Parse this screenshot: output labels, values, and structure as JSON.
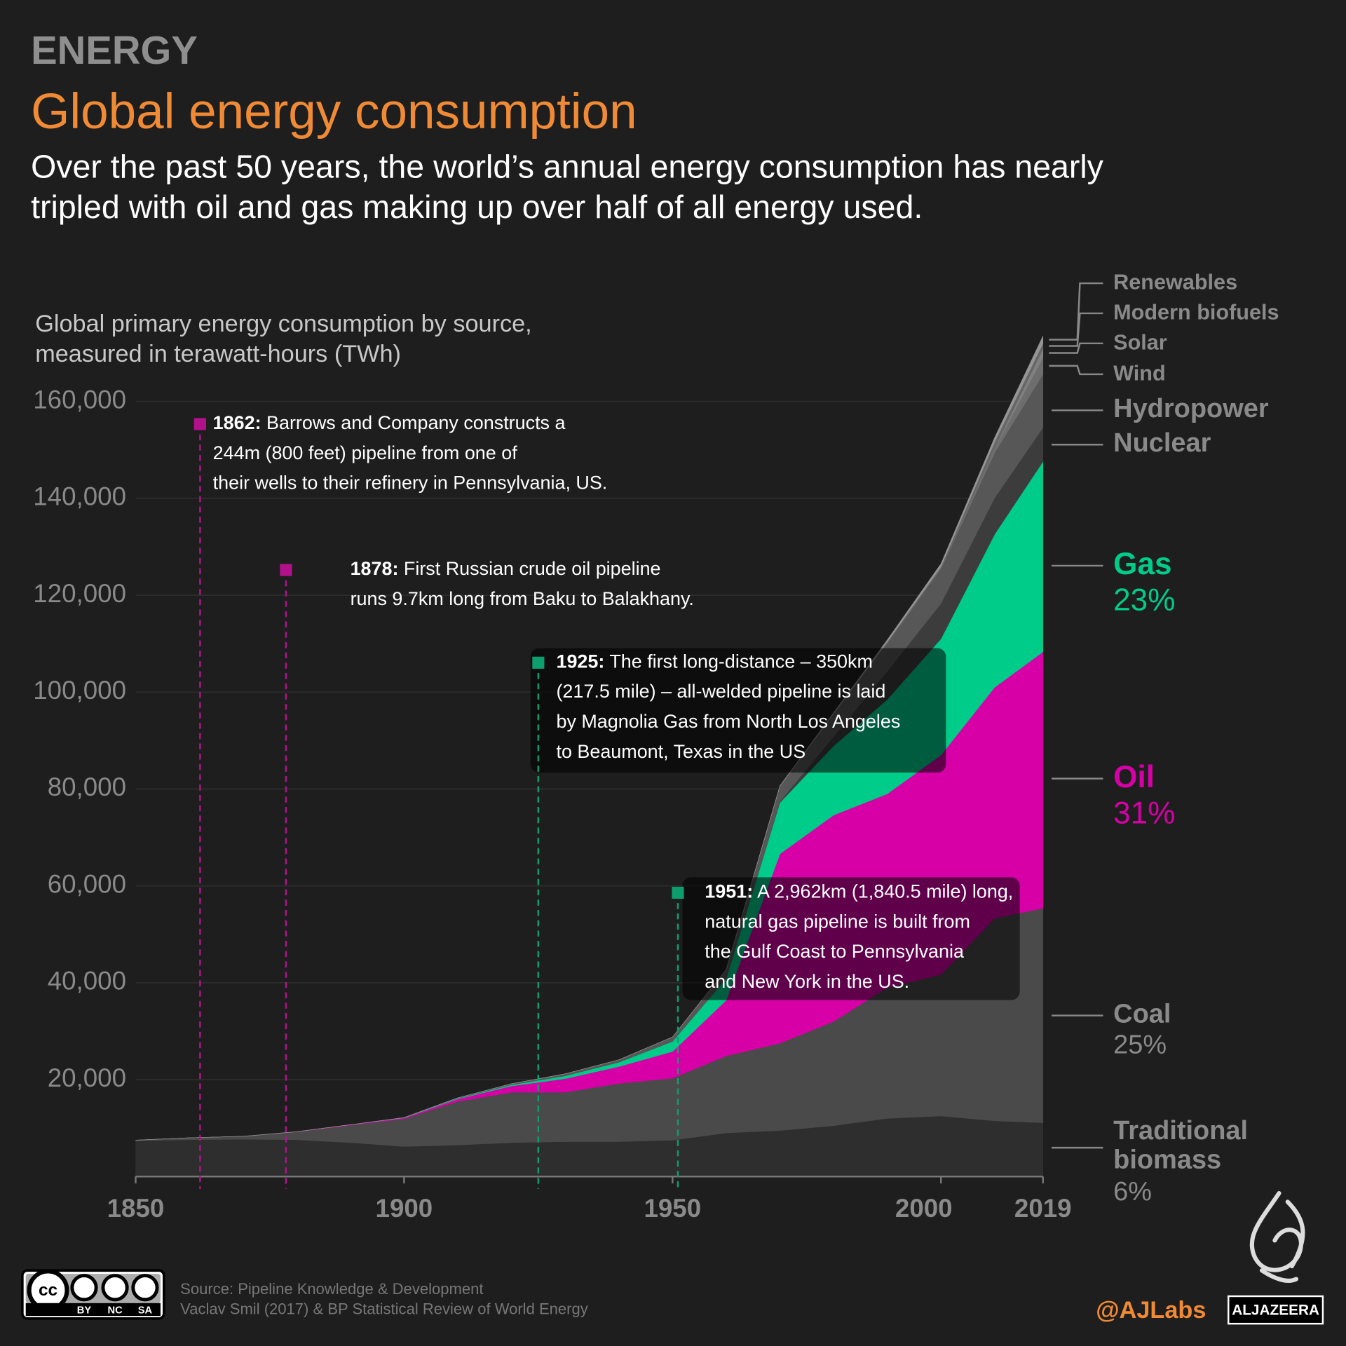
{
  "header": {
    "section": "ENERGY",
    "title": "Global energy consumption",
    "subtitle_lines": [
      "Over the past 50 years, the world’s annual energy consumption has nearly",
      "tripled with oil and gas making up over half of all energy used."
    ]
  },
  "chart_data": {
    "type": "stacked_area",
    "axis_title_lines": [
      "Global primary energy consumption by source,",
      "measured in terawatt-hours (TWh)"
    ],
    "x": [
      1850,
      1860,
      1870,
      1880,
      1890,
      1900,
      1910,
      1920,
      1930,
      1940,
      1950,
      1960,
      1970,
      1980,
      1990,
      2000,
      2010,
      2019
    ],
    "xlim": [
      1850,
      2019
    ],
    "xticks": [
      1850,
      1900,
      1950,
      2000,
      2019
    ],
    "ylim": [
      0,
      175000
    ],
    "yticks": [
      {
        "value": 20000,
        "label": "20,000"
      },
      {
        "value": 40000,
        "label": "40,000"
      },
      {
        "value": 60000,
        "label": "60,000"
      },
      {
        "value": 80000,
        "label": "80,000"
      },
      {
        "value": 100000,
        "label": "100,000"
      },
      {
        "value": 120000,
        "label": "120,000"
      },
      {
        "value": 140000,
        "label": "140,000"
      },
      {
        "value": 160000,
        "label": "160,000"
      }
    ],
    "grid": true,
    "series": [
      {
        "name": "Traditional biomass",
        "color": "#2e2e2e",
        "share": 6,
        "share_label": "6%",
        "values": [
          7400,
          7600,
          7700,
          7600,
          7000,
          6200,
          6500,
          7000,
          7200,
          7200,
          7500,
          9000,
          9500,
          10500,
          12000,
          12500,
          11500,
          11100
        ]
      },
      {
        "name": "Coal",
        "color": "#4a4a4a",
        "share": 25,
        "share_label": "25%",
        "values": [
          100,
          400,
          600,
          1600,
          3600,
          5700,
          9000,
          10400,
          10200,
          12000,
          12800,
          15900,
          18000,
          21500,
          27000,
          29200,
          41800,
          44300
        ]
      },
      {
        "name": "Oil",
        "color": "#d600a6",
        "share": 31,
        "share_label": "31%",
        "values": [
          0,
          0,
          0,
          50,
          100,
          200,
          500,
          1300,
          2800,
          3500,
          5500,
          11500,
          39100,
          42600,
          40000,
          45300,
          47700,
          52900
        ]
      },
      {
        "name": "Gas",
        "color": "#00cc8a",
        "share": 23,
        "share_label": "23%",
        "values": [
          0,
          0,
          0,
          0,
          0,
          70,
          150,
          250,
          600,
          900,
          2100,
          4500,
          10600,
          14300,
          19500,
          24000,
          31600,
          39300
        ]
      },
      {
        "name": "Nuclear",
        "color": "#3c3c3c",
        "values": [
          0,
          0,
          0,
          0,
          0,
          0,
          0,
          0,
          0,
          0,
          0,
          0,
          200,
          1900,
          5800,
          7300,
          7500,
          7000
        ]
      },
      {
        "name": "Hydropower",
        "color": "#575757",
        "values": [
          0,
          0,
          0,
          0,
          0,
          0,
          100,
          200,
          400,
          500,
          900,
          1800,
          3200,
          4800,
          5800,
          7200,
          9300,
          11000
        ]
      },
      {
        "name": "Wind",
        "color": "#6e6e6e",
        "values": [
          0,
          0,
          0,
          0,
          0,
          0,
          0,
          0,
          0,
          0,
          0,
          0,
          0,
          0,
          0,
          100,
          950,
          3500
        ]
      },
      {
        "name": "Solar",
        "color": "#808080",
        "values": [
          0,
          0,
          0,
          0,
          0,
          0,
          0,
          0,
          0,
          0,
          0,
          0,
          0,
          0,
          0,
          0,
          90,
          1800
        ]
      },
      {
        "name": "Modern biofuels",
        "color": "#666666",
        "values": [
          0,
          0,
          0,
          0,
          0,
          0,
          0,
          0,
          0,
          0,
          0,
          0,
          0,
          0,
          280,
          290,
          1200,
          1100
        ]
      },
      {
        "name": "Renewables",
        "color": "#959595",
        "values": [
          0,
          0,
          0,
          0,
          0,
          0,
          0,
          0,
          0,
          0,
          0,
          0,
          50,
          150,
          400,
          600,
          900,
          1500
        ]
      }
    ],
    "annotations": [
      {
        "year": 1862,
        "label": "1862:",
        "color": "#b3118c",
        "lines": [
          " Barrows and Company constructs a",
          "244m (800 feet) pipeline from one of",
          "their wells to their refinery in Pennsylvania, US."
        ]
      },
      {
        "year": 1878,
        "label": "1878:",
        "color": "#b3118c",
        "lines": [
          " First Russian crude oil pipeline",
          "runs 9.7km long from Baku to Balakhany."
        ]
      },
      {
        "year": 1925,
        "label": "1925:",
        "color": "#0d9e6e",
        "lines": [
          " The first long-distance – 350km",
          "(217.5 mile) – all-welded pipeline is laid",
          "by Magnolia Gas from North Los Angeles",
          "to Beaumont, Texas in the US"
        ]
      },
      {
        "year": 1951,
        "label": "1951:",
        "color": "#0d9e6e",
        "lines": [
          " A 2,962km (1,840.5 mile) long,",
          "natural gas pipeline is built from",
          "the Gulf Coast to Pennsylvania",
          "and New York in the US."
        ]
      }
    ]
  },
  "footer": {
    "source_lines": [
      "Source: Pipeline Knowledge & Development",
      "Vaclav Smil (2017) & BP Statistical Review of World Energy"
    ],
    "license": [
      "BY",
      "NC",
      "SA"
    ],
    "cc": "cc",
    "handle": "@AJLabs",
    "brand": "ALJAZEERA"
  }
}
